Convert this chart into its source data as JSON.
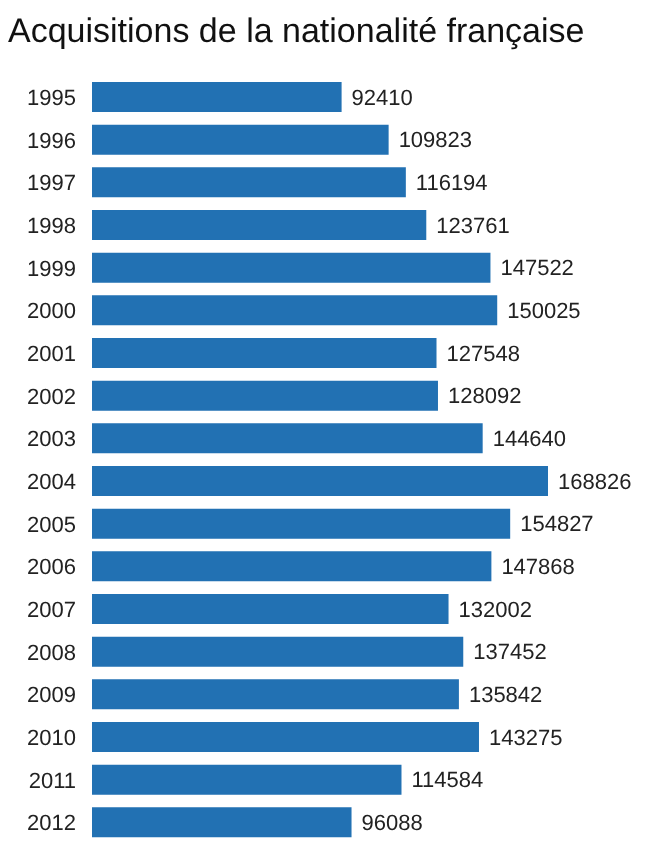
{
  "chart_data": {
    "type": "bar",
    "orientation": "horizontal",
    "title": "Acquisitions de la nationalité française",
    "categories": [
      "1995",
      "1996",
      "1997",
      "1998",
      "1999",
      "2000",
      "2001",
      "2002",
      "2003",
      "2004",
      "2005",
      "2006",
      "2007",
      "2008",
      "2009",
      "2010",
      "2011",
      "2012"
    ],
    "values": [
      92410,
      109823,
      116194,
      123761,
      147522,
      150025,
      127548,
      128092,
      144640,
      168826,
      154827,
      147868,
      132002,
      137452,
      135842,
      143275,
      114584,
      96088
    ],
    "color": "#2271b3",
    "data_labels": true
  }
}
